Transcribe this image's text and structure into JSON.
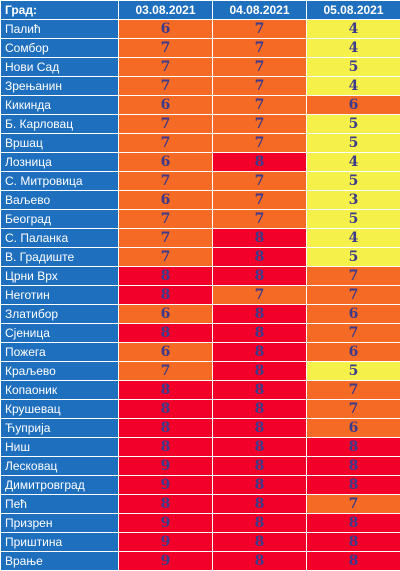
{
  "header": {
    "city_label": "Град:",
    "dates": [
      "03.08.2021",
      "04.08.2021",
      "05.08.2021"
    ]
  },
  "colors": {
    "yellow": "#f5f04a",
    "orange": "#f56a24",
    "red": "#f2002a",
    "header_blue": "#1f6fbf",
    "value_text": "#3c3a8a"
  },
  "rows": [
    {
      "city": "Палић",
      "v": [
        "6",
        "7",
        "4"
      ],
      "c": [
        "o",
        "o",
        "y"
      ]
    },
    {
      "city": "Сомбор",
      "v": [
        "7",
        "7",
        "4"
      ],
      "c": [
        "o",
        "o",
        "y"
      ]
    },
    {
      "city": "Нови Сад",
      "v": [
        "7",
        "7",
        "5"
      ],
      "c": [
        "o",
        "o",
        "y"
      ]
    },
    {
      "city": "Зрењанин",
      "v": [
        "7",
        "7",
        "4"
      ],
      "c": [
        "o",
        "o",
        "y"
      ]
    },
    {
      "city": "Кикинда",
      "v": [
        "6",
        "7",
        "6"
      ],
      "c": [
        "o",
        "o",
        "o"
      ]
    },
    {
      "city": "Б. Карловац",
      "v": [
        "7",
        "7",
        "5"
      ],
      "c": [
        "o",
        "o",
        "y"
      ]
    },
    {
      "city": "Вршац",
      "v": [
        "7",
        "7",
        "5"
      ],
      "c": [
        "o",
        "o",
        "y"
      ]
    },
    {
      "city": "Лозница",
      "v": [
        "6",
        "8",
        "4"
      ],
      "c": [
        "o",
        "r",
        "y"
      ]
    },
    {
      "city": "С. Митровица",
      "v": [
        "7",
        "7",
        "5"
      ],
      "c": [
        "o",
        "o",
        "y"
      ]
    },
    {
      "city": "Ваљево",
      "v": [
        "6",
        "7",
        "3"
      ],
      "c": [
        "o",
        "o",
        "y"
      ]
    },
    {
      "city": "Београд",
      "v": [
        "7",
        "7",
        "5"
      ],
      "c": [
        "o",
        "o",
        "y"
      ]
    },
    {
      "city": "С. Паланка",
      "v": [
        "7",
        "8",
        "4"
      ],
      "c": [
        "o",
        "r",
        "y"
      ]
    },
    {
      "city": "В. Градиште",
      "v": [
        "7",
        "8",
        "5"
      ],
      "c": [
        "o",
        "r",
        "y"
      ]
    },
    {
      "city": "Црни Врх",
      "v": [
        "8",
        "8",
        "7"
      ],
      "c": [
        "r",
        "r",
        "o"
      ]
    },
    {
      "city": "Неготин",
      "v": [
        "8",
        "7",
        "7"
      ],
      "c": [
        "r",
        "o",
        "o"
      ]
    },
    {
      "city": "Златибор",
      "v": [
        "6",
        "8",
        "6"
      ],
      "c": [
        "o",
        "r",
        "o"
      ]
    },
    {
      "city": "Сјеница",
      "v": [
        "8",
        "8",
        "7"
      ],
      "c": [
        "r",
        "r",
        "o"
      ]
    },
    {
      "city": "Пожега",
      "v": [
        "6",
        "8",
        "6"
      ],
      "c": [
        "o",
        "r",
        "o"
      ]
    },
    {
      "city": "Краљево",
      "v": [
        "7",
        "8",
        "5"
      ],
      "c": [
        "o",
        "r",
        "y"
      ]
    },
    {
      "city": "Копаоник",
      "v": [
        "8",
        "8",
        "7"
      ],
      "c": [
        "r",
        "r",
        "o"
      ]
    },
    {
      "city": "Крушевац",
      "v": [
        "8",
        "8",
        "7"
      ],
      "c": [
        "r",
        "r",
        "o"
      ]
    },
    {
      "city": "Ћуприја",
      "v": [
        "8",
        "8",
        "6"
      ],
      "c": [
        "r",
        "r",
        "o"
      ]
    },
    {
      "city": "Ниш",
      "v": [
        "8",
        "8",
        "8"
      ],
      "c": [
        "r",
        "r",
        "r"
      ]
    },
    {
      "city": "Лесковац",
      "v": [
        "9",
        "8",
        "8"
      ],
      "c": [
        "r",
        "r",
        "r"
      ]
    },
    {
      "city": "Димитровград",
      "v": [
        "9",
        "8",
        "8"
      ],
      "c": [
        "r",
        "r",
        "r"
      ]
    },
    {
      "city": "Пећ",
      "v": [
        "8",
        "8",
        "7"
      ],
      "c": [
        "r",
        "r",
        "o"
      ]
    },
    {
      "city": "Призрен",
      "v": [
        "9",
        "8",
        "8"
      ],
      "c": [
        "r",
        "r",
        "r"
      ]
    },
    {
      "city": "Приштина",
      "v": [
        "9",
        "8",
        "8"
      ],
      "c": [
        "r",
        "r",
        "r"
      ]
    },
    {
      "city": "Врање",
      "v": [
        "9",
        "8",
        "8"
      ],
      "c": [
        "r",
        "r",
        "r"
      ]
    }
  ]
}
